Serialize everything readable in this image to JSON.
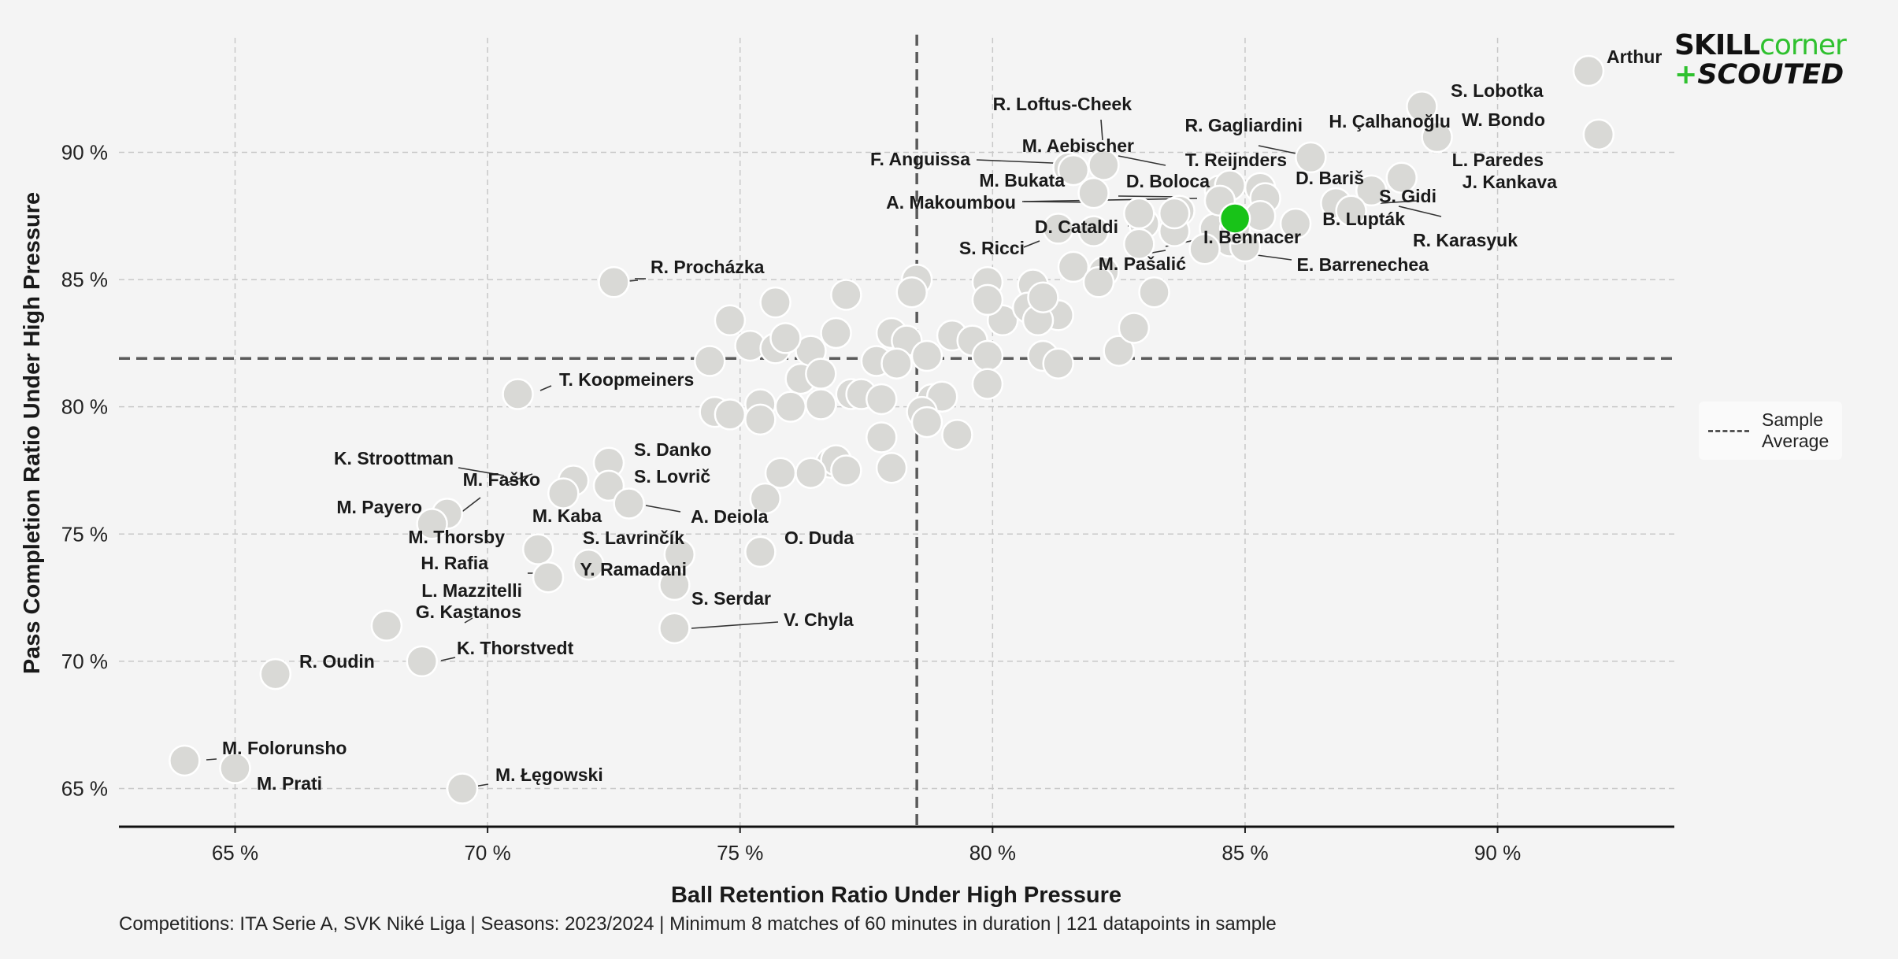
{
  "chart_data": {
    "type": "scatter",
    "xlabel": "Ball Retention Ratio Under High Pressure",
    "ylabel": "Pass Completion Ratio Under High Pressure",
    "xlim": [
      62.7,
      93.5
    ],
    "ylim": [
      63.5,
      94.5
    ],
    "x_ticks": [
      65,
      70,
      75,
      80,
      85,
      90
    ],
    "y_ticks": [
      65,
      70,
      75,
      80,
      85,
      90
    ],
    "tick_format": "{v} %",
    "grid": true,
    "sample_average": {
      "x": 78.5,
      "y": 81.9
    },
    "legend": {
      "label": "Sample\nAverage",
      "placement": "right"
    },
    "colors": {
      "point": "#d9d9d6",
      "highlight": "#18c318",
      "average_line": "#5a5a5a",
      "grid": "#c8c8c8"
    },
    "highlight_x": 84.8,
    "highlight_y": 87.4,
    "labeled_points": [
      {
        "name": "Arthur",
        "x": 91.8,
        "y": 93.2
      },
      {
        "name": "S. Lobotka",
        "x": 88.5,
        "y": 91.8
      },
      {
        "name": "W. Bondo",
        "x": 92.0,
        "y": 90.7
      },
      {
        "name": "H. Çalhanoğlu",
        "x": 88.8,
        "y": 90.6
      },
      {
        "name": "R. Gagliardini",
        "x": 86.3,
        "y": 89.8
      },
      {
        "name": "R. Loftus-Cheek",
        "x": 82.2,
        "y": 89.5
      },
      {
        "name": "M. Aebischer",
        "x": 81.5,
        "y": 89.4
      },
      {
        "name": "F. Anguissa",
        "x": 81.6,
        "y": 89.3
      },
      {
        "name": "T. Reijnders",
        "x": 84.7,
        "y": 88.7
      },
      {
        "name": "L. Paredes",
        "x": 88.1,
        "y": 89.0
      },
      {
        "name": "D. Bariš",
        "x": 85.3,
        "y": 88.6
      },
      {
        "name": "J. Kankava",
        "x": 87.5,
        "y": 88.5
      },
      {
        "name": "M. Bukata",
        "x": 82.0,
        "y": 88.4
      },
      {
        "name": "D. Boloca",
        "x": 85.4,
        "y": 88.2
      },
      {
        "name": "A. Makoumbou",
        "x": 84.5,
        "y": 88.1
      },
      {
        "name": "S. Gidi",
        "x": 86.8,
        "y": 88.0
      },
      {
        "name": "B. Lupták",
        "x": 86.0,
        "y": 87.2
      },
      {
        "name": "R. Karasyuk",
        "x": 87.1,
        "y": 87.7
      },
      {
        "name": "D. Cataldi",
        "x": 82.9,
        "y": 87.6
      },
      {
        "name": "I. Bennacer",
        "x": 84.8,
        "y": 87.4
      },
      {
        "name": "S. Ricci",
        "x": 83.6,
        "y": 87.6
      },
      {
        "name": "M. Pašalić",
        "x": 85.3,
        "y": 87.5
      },
      {
        "name": "E. Barrenechea",
        "x": 84.2,
        "y": 86.2
      },
      {
        "name": "R. Procházka",
        "x": 72.5,
        "y": 84.9
      },
      {
        "name": "T. Koopmeiners",
        "x": 70.6,
        "y": 80.5
      },
      {
        "name": "S. Danko",
        "x": 72.4,
        "y": 77.8
      },
      {
        "name": "K. Stroottman",
        "x": 71.7,
        "y": 77.1
      },
      {
        "name": "S. Lovrič",
        "x": 72.4,
        "y": 76.9
      },
      {
        "name": "M. Faško",
        "x": 69.2,
        "y": 75.8
      },
      {
        "name": "M. Payero",
        "x": 68.9,
        "y": 75.4
      },
      {
        "name": "A. Deiola",
        "x": 72.8,
        "y": 76.2
      },
      {
        "name": "M. Kaba",
        "x": 71.5,
        "y": 76.6
      },
      {
        "name": "M. Thorsby",
        "x": 71.0,
        "y": 74.4
      },
      {
        "name": "S. Lavrinčík",
        "x": 73.8,
        "y": 74.2
      },
      {
        "name": "O. Duda",
        "x": 75.4,
        "y": 74.3
      },
      {
        "name": "H. Rafia",
        "x": 72.0,
        "y": 73.8
      },
      {
        "name": "Y. Ramadani",
        "x": 73.7,
        "y": 73.0
      },
      {
        "name": "L. Mazzitelli",
        "x": 71.2,
        "y": 73.3
      },
      {
        "name": "G. Kastanos",
        "x": 68.0,
        "y": 71.4
      },
      {
        "name": "S. Serdar",
        "x": 73.7,
        "y": 71.3
      },
      {
        "name": "V. Chyla",
        "x": 73.7,
        "y": 71.3
      },
      {
        "name": "K. Thorstvedt",
        "x": 68.7,
        "y": 70.0
      },
      {
        "name": "R. Oudin",
        "x": 65.8,
        "y": 69.5
      },
      {
        "name": "M. Folorunsho",
        "x": 64.0,
        "y": 66.1
      },
      {
        "name": "M. Prati",
        "x": 65.0,
        "y": 65.8
      },
      {
        "name": "M. Łęgowski",
        "x": 69.5,
        "y": 65.0
      }
    ],
    "other_points": [
      {
        "x": 72.5,
        "y": 84.9
      },
      {
        "x": 74.8,
        "y": 83.4
      },
      {
        "x": 75.7,
        "y": 84.1
      },
      {
        "x": 77.1,
        "y": 84.4
      },
      {
        "x": 78.5,
        "y": 85.0
      },
      {
        "x": 78.4,
        "y": 84.5
      },
      {
        "x": 79.9,
        "y": 84.9
      },
      {
        "x": 80.8,
        "y": 84.8
      },
      {
        "x": 81.6,
        "y": 85.5
      },
      {
        "x": 82.2,
        "y": 85.3
      },
      {
        "x": 83.2,
        "y": 84.5
      },
      {
        "x": 82.1,
        "y": 84.9
      },
      {
        "x": 80.2,
        "y": 83.4
      },
      {
        "x": 79.9,
        "y": 84.2
      },
      {
        "x": 80.7,
        "y": 83.9
      },
      {
        "x": 81.3,
        "y": 83.6
      },
      {
        "x": 80.9,
        "y": 83.4
      },
      {
        "x": 81.0,
        "y": 84.3
      },
      {
        "x": 76.4,
        "y": 82.2
      },
      {
        "x": 75.2,
        "y": 82.4
      },
      {
        "x": 75.7,
        "y": 82.3
      },
      {
        "x": 74.4,
        "y": 81.8
      },
      {
        "x": 75.9,
        "y": 82.7
      },
      {
        "x": 76.9,
        "y": 82.9
      },
      {
        "x": 77.7,
        "y": 81.8
      },
      {
        "x": 78.0,
        "y": 82.9
      },
      {
        "x": 78.3,
        "y": 82.6
      },
      {
        "x": 78.1,
        "y": 81.7
      },
      {
        "x": 78.7,
        "y": 82.0
      },
      {
        "x": 79.2,
        "y": 82.8
      },
      {
        "x": 79.6,
        "y": 82.6
      },
      {
        "x": 79.9,
        "y": 82.0
      },
      {
        "x": 81.0,
        "y": 82.0
      },
      {
        "x": 81.3,
        "y": 81.7
      },
      {
        "x": 82.5,
        "y": 82.2
      },
      {
        "x": 82.8,
        "y": 83.1
      },
      {
        "x": 79.9,
        "y": 80.9
      },
      {
        "x": 76.2,
        "y": 81.1
      },
      {
        "x": 76.6,
        "y": 81.3
      },
      {
        "x": 75.4,
        "y": 80.1
      },
      {
        "x": 76.0,
        "y": 80.0
      },
      {
        "x": 76.6,
        "y": 80.1
      },
      {
        "x": 77.2,
        "y": 80.5
      },
      {
        "x": 77.4,
        "y": 80.5
      },
      {
        "x": 77.8,
        "y": 80.3
      },
      {
        "x": 78.8,
        "y": 80.3
      },
      {
        "x": 79.0,
        "y": 80.4
      },
      {
        "x": 74.5,
        "y": 79.8
      },
      {
        "x": 74.8,
        "y": 79.7
      },
      {
        "x": 75.4,
        "y": 79.5
      },
      {
        "x": 78.6,
        "y": 79.8
      },
      {
        "x": 78.7,
        "y": 79.4
      },
      {
        "x": 79.3,
        "y": 78.9
      },
      {
        "x": 77.8,
        "y": 78.8
      },
      {
        "x": 76.8,
        "y": 77.8
      },
      {
        "x": 76.9,
        "y": 77.9
      },
      {
        "x": 77.1,
        "y": 77.5
      },
      {
        "x": 76.4,
        "y": 77.4
      },
      {
        "x": 75.8,
        "y": 77.4
      },
      {
        "x": 78.0,
        "y": 77.6
      },
      {
        "x": 75.5,
        "y": 76.4
      },
      {
        "x": 75.4,
        "y": 74.3
      },
      {
        "x": 83.0,
        "y": 87.2
      },
      {
        "x": 82.9,
        "y": 86.4
      },
      {
        "x": 84.7,
        "y": 86.5
      },
      {
        "x": 85.0,
        "y": 86.3
      },
      {
        "x": 84.4,
        "y": 87.0
      },
      {
        "x": 84.5,
        "y": 88.5
      },
      {
        "x": 84.8,
        "y": 87.0
      },
      {
        "x": 83.7,
        "y": 87.7
      },
      {
        "x": 83.6,
        "y": 86.9
      },
      {
        "x": 82.0,
        "y": 86.9
      },
      {
        "x": 81.3,
        "y": 87.0
      }
    ],
    "annotation": "Competitions: ITA Serie A, SVK Niké Liga | Seasons: 2023/2024 | Minimum 8 matches of 60 minutes in duration | 121 datapoints in sample"
  },
  "logo": {
    "line1a": "SKILL",
    "line1b": "corner",
    "plus": "+",
    "line2": "SCOUTED"
  },
  "legend_lines": [
    "Sample",
    "Average"
  ]
}
